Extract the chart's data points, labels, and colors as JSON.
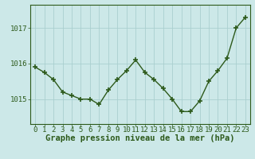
{
  "x": [
    0,
    1,
    2,
    3,
    4,
    5,
    6,
    7,
    8,
    9,
    10,
    11,
    12,
    13,
    14,
    15,
    16,
    17,
    18,
    19,
    20,
    21,
    22,
    23
  ],
  "y": [
    1015.9,
    1015.75,
    1015.55,
    1015.2,
    1015.1,
    1015.0,
    1015.0,
    1014.85,
    1015.25,
    1015.55,
    1015.8,
    1016.1,
    1015.75,
    1015.55,
    1015.3,
    1015.0,
    1014.65,
    1014.65,
    1014.95,
    1015.5,
    1015.8,
    1016.15,
    1017.0,
    1017.3
  ],
  "line_color": "#2d5a1b",
  "marker_color": "#2d5a1b",
  "bg_color": "#cce8e8",
  "grid_color": "#aacfcf",
  "axis_label_color": "#2d5a1b",
  "xlabel": "Graphe pression niveau de la mer (hPa)",
  "ytick_values": [
    1015,
    1016,
    1017
  ],
  "ytick_labels": [
    "1015",
    "1016",
    "1017"
  ],
  "ylim": [
    1014.3,
    1017.65
  ],
  "xlim": [
    -0.5,
    23.5
  ],
  "xticks": [
    0,
    1,
    2,
    3,
    4,
    5,
    6,
    7,
    8,
    9,
    10,
    11,
    12,
    13,
    14,
    15,
    16,
    17,
    18,
    19,
    20,
    21,
    22,
    23
  ],
  "xlabel_fontsize": 7.5,
  "tick_fontsize": 6.5,
  "line_width": 1.0,
  "marker_size": 4.0
}
